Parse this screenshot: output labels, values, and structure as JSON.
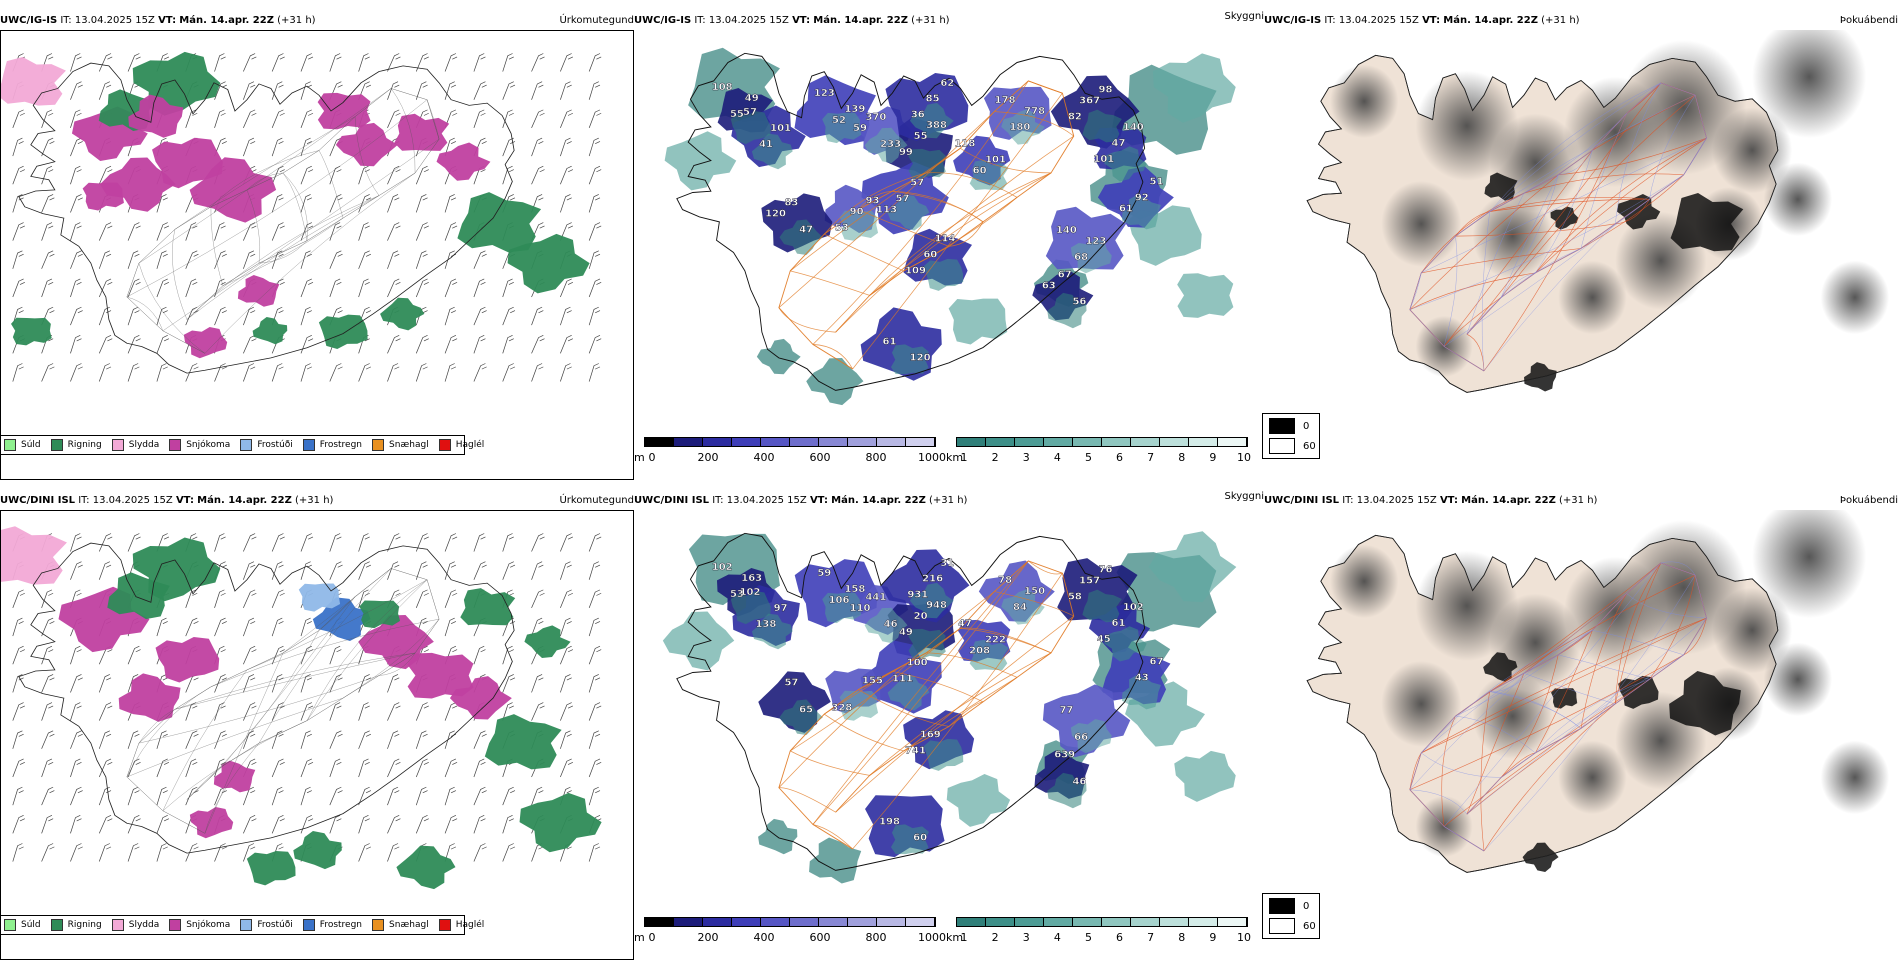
{
  "rows": [
    {
      "model": "UWC/IG-IS",
      "header": {
        "it": "IT: 13.04.2025 15Z",
        "vt_label": "VT:",
        "vt": "Mán. 14.apr. 22Z",
        "lead": "(+31 h)"
      },
      "cloud_labels": [
        "108",
        "41",
        "139",
        "370",
        "388",
        "36",
        "101",
        "178",
        "98",
        "101",
        "92",
        "140",
        "67",
        "109",
        "57",
        "93",
        "83",
        "120",
        "55",
        "101",
        "123",
        "233",
        "99",
        "85",
        "118",
        "180",
        "82",
        "47",
        "51",
        "68",
        "56",
        "60",
        "57",
        "53",
        "47",
        "61",
        "49",
        "57",
        "52",
        "59",
        "55",
        "62",
        "60",
        "778",
        "367",
        "140",
        "61",
        "123",
        "63",
        "114",
        "113",
        "90",
        "120"
      ]
    },
    {
      "model": "UWC/DINI ISL",
      "header": {
        "it": "IT: 13.04.2025 15Z",
        "vt_label": "VT:",
        "vt": "Mán. 14.apr. 22Z",
        "lead": "(+31 h)"
      },
      "cloud_labels": [
        "102",
        "138",
        "158",
        "441",
        "948",
        "931",
        "222",
        "78",
        "76",
        "45",
        "43",
        "77",
        "639",
        "741",
        "111",
        "155",
        "57",
        "60",
        "53",
        "97",
        "59",
        "46",
        "49",
        "216",
        "47",
        "84",
        "58",
        "61",
        "67",
        "66",
        "46",
        "169",
        "100",
        "328",
        "65",
        "198",
        "163",
        "102",
        "106",
        "110",
        "20",
        "31",
        "208",
        "150",
        "157",
        "102"
      ]
    }
  ],
  "titles": {
    "precip": "Úrkomutegund",
    "cloud": "Skyggni",
    "fog": "Þokuábendi"
  },
  "precip_legend": [
    {
      "label": "Súld",
      "color": "#8ef08e"
    },
    {
      "label": "Rigning",
      "color": "#2e8b57"
    },
    {
      "label": "Slydda",
      "color": "#f2a9d6"
    },
    {
      "label": "Snjókoma",
      "color": "#c040a0"
    },
    {
      "label": "Frostúði",
      "color": "#8fb8e8"
    },
    {
      "label": "Frostregn",
      "color": "#3a72c8"
    },
    {
      "label": "Snæhagl",
      "color": "#e89020"
    },
    {
      "label": "Haglél",
      "color": "#e01010"
    }
  ],
  "cloud_base_scale": {
    "unit": "m",
    "ticks": [
      "0",
      "200",
      "400",
      "600",
      "800",
      "1000"
    ],
    "colors": [
      "#000000",
      "#1c1c7a",
      "#2c2ca0",
      "#3e3eb8",
      "#5656c4",
      "#6e6ecc",
      "#8888d4",
      "#a0a0dc",
      "#b8b8e4",
      "#d0d0ee"
    ]
  },
  "visibility_scale": {
    "unit": "km",
    "ticks": [
      "1",
      "2",
      "3",
      "4",
      "5",
      "6",
      "7",
      "8",
      "9",
      "10"
    ],
    "colors": [
      "#2f7f79",
      "#3d8f88",
      "#4d9c95",
      "#62aaa3",
      "#78b8b1",
      "#8fc6bf",
      "#a6d3cd",
      "#bde0db",
      "#d4ece8",
      "#ecf7f5"
    ]
  },
  "fog_legend": [
    {
      "label": "0",
      "color": "#000000"
    },
    {
      "label": "60",
      "color": "#ffffff"
    }
  ]
}
